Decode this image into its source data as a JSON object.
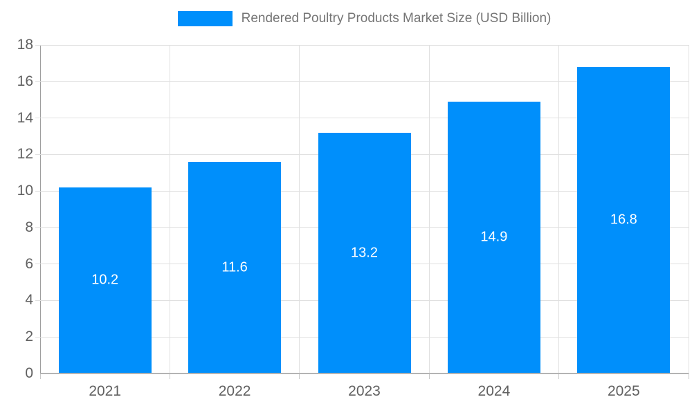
{
  "legend": {
    "label": "Rendered Poultry Products Market Size (USD Billion)"
  },
  "colors": {
    "bar": "#008FFB",
    "grid": "#e0e0e0",
    "x_axis_line": "#b3b3b3",
    "y_axis_line": "#9e9e9e",
    "tick_label": "#616161",
    "legend_text": "#757575",
    "value_label": "#ffffff",
    "background": "#ffffff"
  },
  "chart_data": {
    "type": "bar",
    "title": "Rendered Poultry Products Market Size (USD Billion)",
    "categories": [
      "2021",
      "2022",
      "2023",
      "2024",
      "2025"
    ],
    "values": [
      10.2,
      11.6,
      13.2,
      14.9,
      16.8
    ],
    "xlabel": "",
    "ylabel": "",
    "ylim": [
      0,
      18
    ],
    "ytick_step": 2,
    "ytick_labels": [
      "0",
      "2",
      "4",
      "6",
      "8",
      "10",
      "12",
      "14",
      "16",
      "18"
    ],
    "grid": true,
    "legend_position": "top",
    "value_label_position": "inside-center"
  }
}
